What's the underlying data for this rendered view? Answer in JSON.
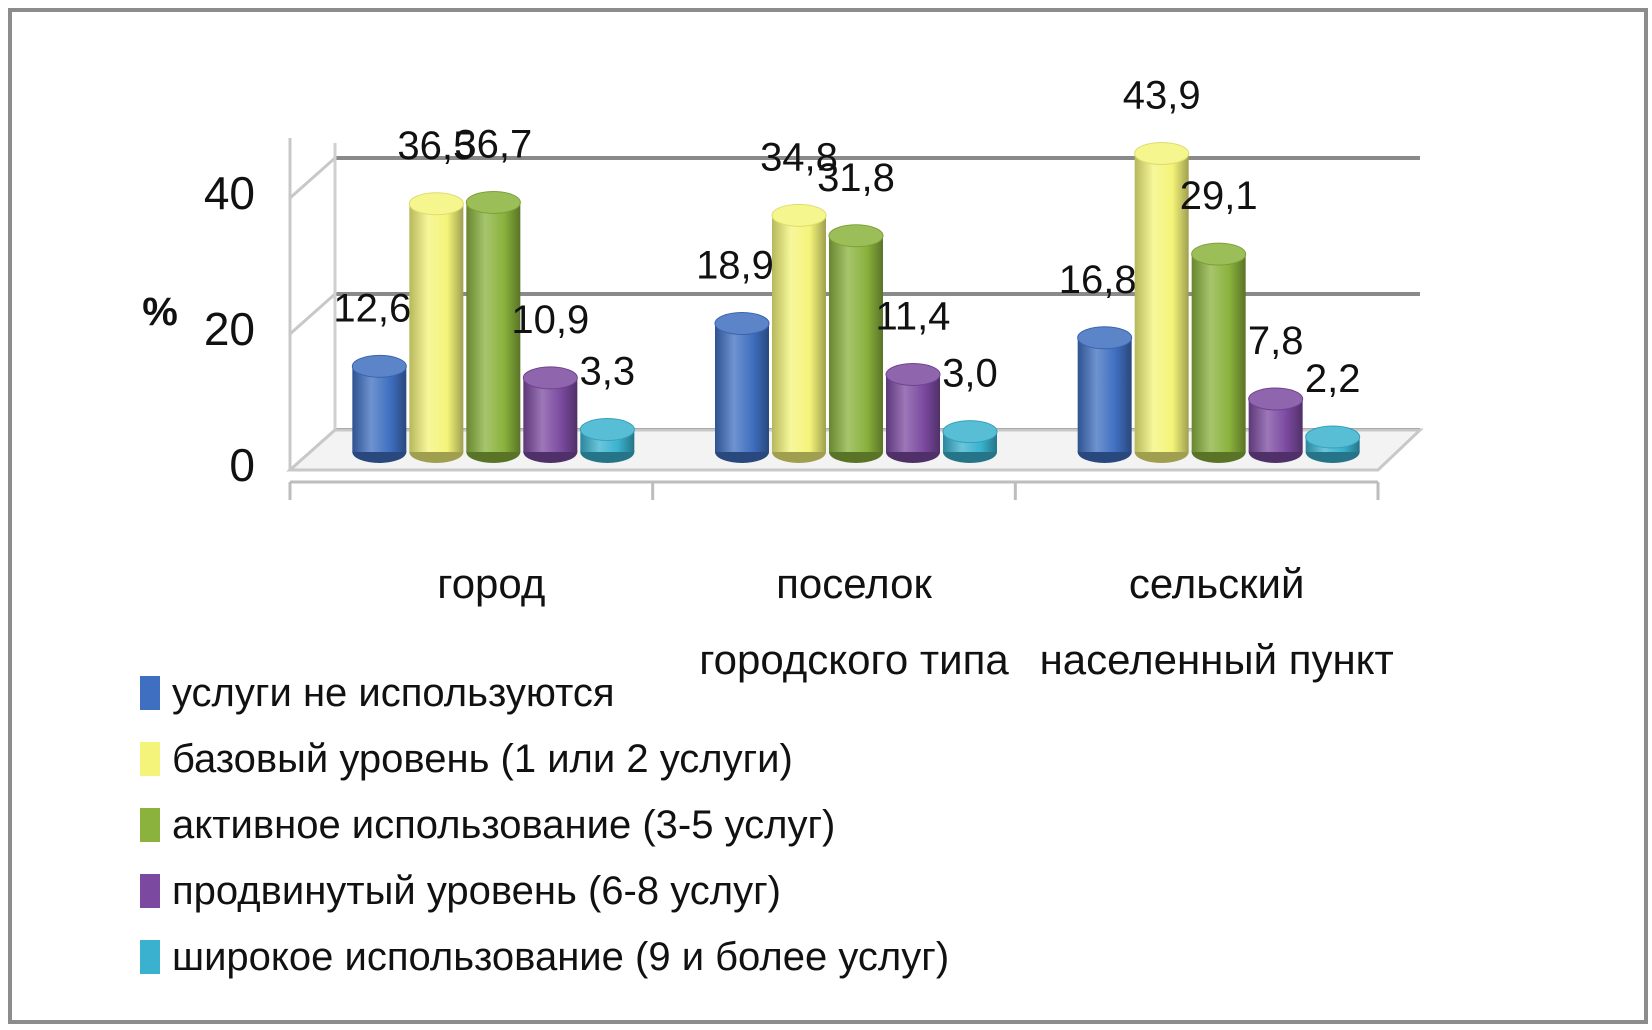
{
  "chart_data": {
    "type": "bar",
    "categories": [
      [
        "город"
      ],
      [
        "поселок",
        "городского типа"
      ],
      [
        "сельский",
        "населенный пункт"
      ]
    ],
    "series": [
      {
        "name": "услуги не  используются",
        "values": [
          12.6,
          18.9,
          16.8
        ],
        "labels": [
          "12,6",
          "18,9",
          "16,8"
        ],
        "color": "#3f6fc0"
      },
      {
        "name": "базовый уровень (1 или 2 услуги)",
        "values": [
          36.5,
          34.8,
          43.9
        ],
        "labels": [
          "36,5",
          "34,8",
          "43,9"
        ],
        "color": "#f4f47a"
      },
      {
        "name": "активное использование (3-5 услуг)",
        "values": [
          36.7,
          31.8,
          29.1
        ],
        "labels": [
          "36,7",
          "31,8",
          "29,1"
        ],
        "color": "#8ab23c"
      },
      {
        "name": "продвинутый уровень (6-8 услуг)",
        "values": [
          10.9,
          11.4,
          7.8
        ],
        "labels": [
          "10,9",
          "11,4",
          "7,8"
        ],
        "color": "#7b4aa0"
      },
      {
        "name": "широкое использование (9 и более  услуг)",
        "values": [
          3.3,
          3.0,
          2.2
        ],
        "labels": [
          "3,3",
          "3,0",
          "2,2"
        ],
        "color": "#3ab2cf"
      }
    ],
    "ylabel": "%",
    "ylim": [
      0,
      40
    ],
    "yticks": [
      "0",
      "20",
      "40"
    ],
    "grid": true,
    "legend": "bottom-left",
    "style": "3d-cylinder"
  }
}
